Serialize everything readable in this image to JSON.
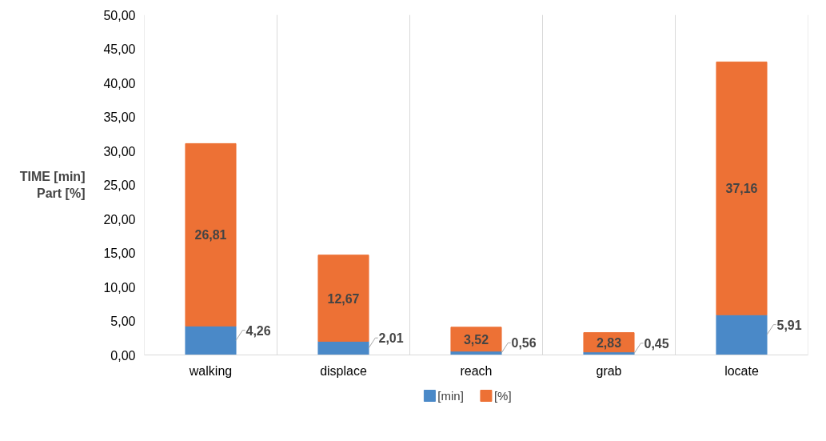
{
  "chart_data": {
    "type": "bar",
    "stacked": true,
    "ylabel": "TIME [min]\nPart [%]",
    "categories": [
      "walking",
      "displace",
      "reach",
      "grab",
      "locate"
    ],
    "series": [
      {
        "name": "[min]",
        "color": "#4a89c8",
        "values": [
          4.26,
          2.01,
          0.56,
          0.45,
          5.91
        ],
        "value_labels": [
          "4,26",
          "2,01",
          "0,56",
          "0,45",
          "5,91"
        ]
      },
      {
        "name": "[%]",
        "color": "#ed7135",
        "values": [
          26.81,
          12.67,
          3.52,
          2.83,
          37.16
        ],
        "value_labels": [
          "26,81",
          "12,67",
          "3,52",
          "2,83",
          "37,16"
        ]
      }
    ],
    "ylim": [
      0,
      50
    ],
    "yticks": [
      {
        "value": 0,
        "label": "0,00"
      },
      {
        "value": 5,
        "label": "5,00"
      },
      {
        "value": 10,
        "label": "10,00"
      },
      {
        "value": 15,
        "label": "15,00"
      },
      {
        "value": 20,
        "label": "20,00"
      },
      {
        "value": 25,
        "label": "25,00"
      },
      {
        "value": 30,
        "label": "30,00"
      },
      {
        "value": 35,
        "label": "35,00"
      },
      {
        "value": 40,
        "label": "40,00"
      },
      {
        "value": 45,
        "label": "45,00"
      },
      {
        "value": 50,
        "label": "50,00"
      }
    ],
    "grid": "x",
    "legend": "bottom"
  }
}
